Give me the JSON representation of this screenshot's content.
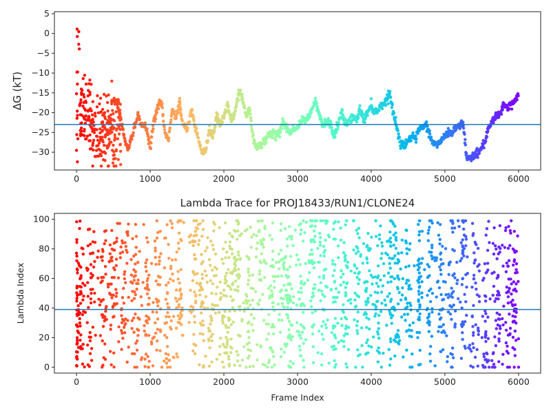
{
  "chart_data": [
    {
      "type": "scatter",
      "title": "",
      "xlabel": "",
      "ylabel": "ΔG (kT)",
      "xlim": [
        -300,
        6300
      ],
      "ylim": [
        -34.5,
        5.5
      ],
      "xticks": [
        0,
        1000,
        2000,
        3000,
        4000,
        5000,
        6000
      ],
      "yticks": [
        -30,
        -25,
        -20,
        -15,
        -10,
        -5,
        0,
        5
      ],
      "hline": -23,
      "hline_color": "#1f77b4",
      "colormap": "rainbow (red at frame 0 to violet at frame 6000)",
      "n_frames": 6000,
      "trace_points": [
        [
          100,
          -25
        ],
        [
          180,
          -10
        ],
        [
          250,
          -20
        ],
        [
          320,
          -16
        ],
        [
          400,
          -24
        ],
        [
          480,
          -22
        ],
        [
          550,
          -17
        ],
        [
          600,
          -22
        ],
        [
          650,
          -26
        ],
        [
          700,
          -30
        ],
        [
          760,
          -25
        ],
        [
          830,
          -21
        ],
        [
          880,
          -23
        ],
        [
          950,
          -24
        ],
        [
          1000,
          -29
        ],
        [
          1050,
          -22
        ],
        [
          1100,
          -19
        ],
        [
          1150,
          -17
        ],
        [
          1200,
          -25
        ],
        [
          1250,
          -27
        ],
        [
          1300,
          -19
        ],
        [
          1350,
          -21
        ],
        [
          1400,
          -17
        ],
        [
          1430,
          -22
        ],
        [
          1500,
          -25
        ],
        [
          1560,
          -19
        ],
        [
          1600,
          -23
        ],
        [
          1650,
          -26
        ],
        [
          1700,
          -30
        ],
        [
          1750,
          -30
        ],
        [
          1800,
          -24
        ],
        [
          1850,
          -26
        ],
        [
          1900,
          -21
        ],
        [
          1950,
          -23
        ],
        [
          2000,
          -21
        ],
        [
          2050,
          -18
        ],
        [
          2100,
          -22
        ],
        [
          2150,
          -20
        ],
        [
          2200,
          -15
        ],
        [
          2250,
          -16
        ],
        [
          2300,
          -21
        ],
        [
          2350,
          -19
        ],
        [
          2400,
          -27
        ],
        [
          2450,
          -29
        ],
        [
          2500,
          -28
        ],
        [
          2550,
          -27
        ],
        [
          2600,
          -26
        ],
        [
          2650,
          -25
        ],
        [
          2700,
          -26
        ],
        [
          2760,
          -25
        ],
        [
          2800,
          -22
        ],
        [
          2850,
          -24
        ],
        [
          2900,
          -25
        ],
        [
          2950,
          -24
        ],
        [
          3000,
          -24
        ],
        [
          3050,
          -22
        ],
        [
          3100,
          -22
        ],
        [
          3150,
          -21
        ],
        [
          3200,
          -19
        ],
        [
          3250,
          -17
        ],
        [
          3300,
          -21
        ],
        [
          3350,
          -23
        ],
        [
          3400,
          -22
        ],
        [
          3450,
          -23
        ],
        [
          3500,
          -26
        ],
        [
          3550,
          -23
        ],
        [
          3600,
          -20
        ],
        [
          3650,
          -23
        ],
        [
          3700,
          -22
        ],
        [
          3750,
          -21
        ],
        [
          3800,
          -22
        ],
        [
          3850,
          -19
        ],
        [
          3900,
          -22
        ],
        [
          3950,
          -20
        ],
        [
          4000,
          -18
        ],
        [
          4050,
          -20
        ],
        [
          4100,
          -19
        ],
        [
          4150,
          -18
        ],
        [
          4200,
          -17
        ],
        [
          4250,
          -15
        ],
        [
          4300,
          -20
        ],
        [
          4350,
          -24
        ],
        [
          4400,
          -28
        ],
        [
          4450,
          -28
        ],
        [
          4500,
          -27
        ],
        [
          4550,
          -26
        ],
        [
          4600,
          -27
        ],
        [
          4650,
          -24
        ],
        [
          4700,
          -24
        ],
        [
          4750,
          -23
        ],
        [
          4800,
          -26
        ],
        [
          4850,
          -28
        ],
        [
          4900,
          -28
        ],
        [
          4950,
          -27
        ],
        [
          5000,
          -26
        ],
        [
          5050,
          -25
        ],
        [
          5100,
          -25
        ],
        [
          5150,
          -24
        ],
        [
          5200,
          -23
        ],
        [
          5250,
          -23
        ],
        [
          5300,
          -32
        ],
        [
          5350,
          -31
        ],
        [
          5400,
          -31
        ],
        [
          5450,
          -30
        ],
        [
          5500,
          -29
        ],
        [
          5550,
          -27
        ],
        [
          5600,
          -24
        ],
        [
          5650,
          -22
        ],
        [
          5700,
          -21
        ],
        [
          5750,
          -20
        ],
        [
          5800,
          -18
        ],
        [
          5850,
          -19
        ],
        [
          5900,
          -18
        ],
        [
          5950,
          -17
        ],
        [
          6000,
          -15
        ]
      ]
    },
    {
      "type": "scatter",
      "title": "Lambda Trace for PROJ18433/RUN1/CLONE24",
      "xlabel": "Frame Index",
      "ylabel": "Lambda Index",
      "xlim": [
        -300,
        6300
      ],
      "ylim": [
        -4,
        104
      ],
      "xticks": [
        0,
        1000,
        2000,
        3000,
        4000,
        5000,
        6000
      ],
      "yticks": [
        0,
        20,
        40,
        60,
        80,
        100
      ],
      "hline": 39,
      "hline_color": "#1f77b4",
      "colormap": "rainbow (red at frame 0 to violet at frame 6000)",
      "n_frames": 6000,
      "lambda_range": [
        0,
        99
      ],
      "cluster_centers": [
        [
          50,
          50
        ],
        [
          200,
          50
        ],
        [
          350,
          50
        ],
        [
          500,
          50
        ],
        [
          650,
          50
        ],
        [
          800,
          45
        ],
        [
          950,
          50
        ],
        [
          1100,
          45
        ],
        [
          1250,
          40
        ],
        [
          1400,
          45
        ],
        [
          1600,
          75
        ],
        [
          1700,
          45
        ],
        [
          1850,
          45
        ],
        [
          2000,
          45
        ],
        [
          2100,
          50
        ],
        [
          2200,
          75
        ],
        [
          2350,
          30
        ],
        [
          2500,
          60
        ],
        [
          2650,
          40
        ],
        [
          2800,
          55
        ],
        [
          2900,
          40
        ],
        [
          3050,
          30
        ],
        [
          3200,
          80
        ],
        [
          3350,
          70
        ],
        [
          3500,
          40
        ],
        [
          3650,
          50
        ],
        [
          3800,
          60
        ],
        [
          3950,
          50
        ],
        [
          4100,
          40
        ],
        [
          4250,
          80
        ],
        [
          4350,
          60
        ],
        [
          4500,
          40
        ],
        [
          4650,
          50
        ],
        [
          4800,
          60
        ],
        [
          4950,
          50
        ],
        [
          5100,
          40
        ],
        [
          5250,
          75
        ],
        [
          5400,
          30
        ],
        [
          5550,
          25
        ],
        [
          5700,
          35
        ],
        [
          5850,
          50
        ],
        [
          5950,
          45
        ]
      ]
    }
  ]
}
